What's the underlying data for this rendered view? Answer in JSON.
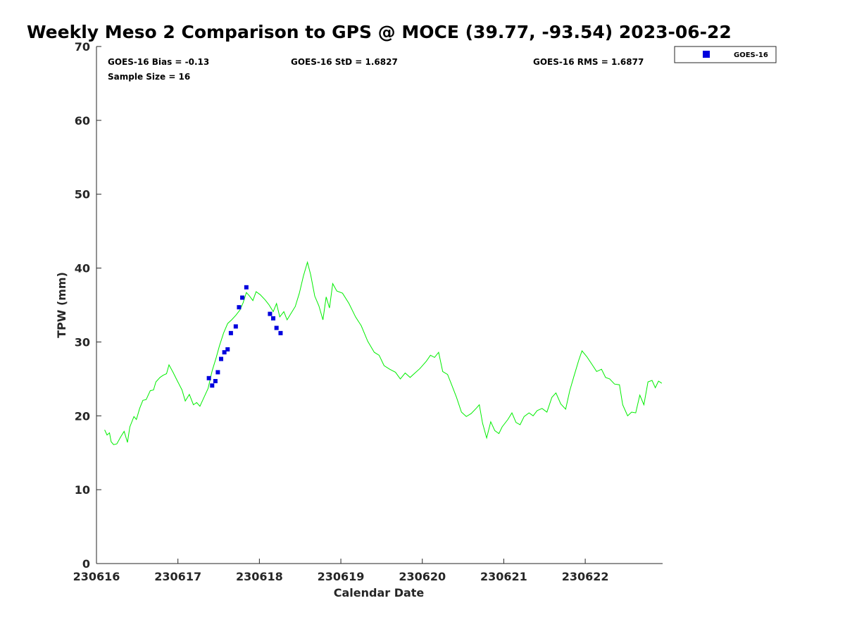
{
  "chart_data": {
    "type": "scatter",
    "title": "Weekly Meso 2 Comparison to GPS @ MOCE (39.77, -93.54) 2023-06-22",
    "xlabel": "Calendar Date",
    "ylabel": "TPW (mm)",
    "xlim": [
      230616.0,
      230622.95
    ],
    "ylim": [
      0,
      70
    ],
    "x_ticks": [
      230616,
      230617,
      230618,
      230619,
      230620,
      230621,
      230622
    ],
    "x_tick_labels": [
      "230616",
      "230617",
      "230618",
      "230619",
      "230620",
      "230621",
      "230622"
    ],
    "y_ticks": [
      0,
      10,
      20,
      30,
      40,
      50,
      60,
      70
    ],
    "y_tick_labels": [
      "0",
      "10",
      "20",
      "30",
      "40",
      "50",
      "60",
      "70"
    ],
    "grid": false,
    "legend_position": "top-right outside",
    "stats": {
      "bias": "GOES-16 Bias = -0.13",
      "std": "GOES-16 StD = 1.6827",
      "rms": "GOES-16 RMS = 1.6877",
      "sample": "Sample Size = 16"
    },
    "series": [
      {
        "name": "GOES-16",
        "kind": "scatter",
        "marker": "square",
        "color": "#0000dd",
        "points": [
          [
            230617.38,
            25.1
          ],
          [
            230617.42,
            24.1
          ],
          [
            230617.46,
            24.7
          ],
          [
            230617.49,
            25.9
          ],
          [
            230617.53,
            27.7
          ],
          [
            230617.57,
            28.6
          ],
          [
            230617.61,
            29.0
          ],
          [
            230617.65,
            31.2
          ],
          [
            230617.71,
            32.1
          ],
          [
            230617.75,
            34.7
          ],
          [
            230617.79,
            36.0
          ],
          [
            230617.84,
            37.4
          ],
          [
            230618.13,
            33.8
          ],
          [
            230618.17,
            33.2
          ],
          [
            230618.21,
            31.9
          ],
          [
            230618.26,
            31.2
          ]
        ]
      },
      {
        "kind": "line",
        "color": "#00ee00",
        "points": [
          [
            230616.1,
            18.1
          ],
          [
            230616.13,
            17.4
          ],
          [
            230616.16,
            17.7
          ],
          [
            230616.18,
            16.5
          ],
          [
            230616.21,
            16.1
          ],
          [
            230616.25,
            16.2
          ],
          [
            230616.3,
            17.2
          ],
          [
            230616.34,
            17.9
          ],
          [
            230616.38,
            16.4
          ],
          [
            230616.41,
            18.5
          ],
          [
            230616.46,
            19.9
          ],
          [
            230616.49,
            19.5
          ],
          [
            230616.53,
            21.0
          ],
          [
            230616.57,
            22.1
          ],
          [
            230616.61,
            22.2
          ],
          [
            230616.66,
            23.4
          ],
          [
            230616.7,
            23.5
          ],
          [
            230616.73,
            24.6
          ],
          [
            230616.78,
            25.2
          ],
          [
            230616.82,
            25.5
          ],
          [
            230616.86,
            25.7
          ],
          [
            230616.89,
            26.9
          ],
          [
            230616.94,
            25.9
          ],
          [
            230616.99,
            24.8
          ],
          [
            230617.05,
            23.5
          ],
          [
            230617.09,
            22.0
          ],
          [
            230617.14,
            22.9
          ],
          [
            230617.19,
            21.5
          ],
          [
            230617.23,
            21.8
          ],
          [
            230617.27,
            21.3
          ],
          [
            230617.32,
            22.5
          ],
          [
            230617.37,
            23.7
          ],
          [
            230617.42,
            26.1
          ],
          [
            230617.47,
            27.9
          ],
          [
            230617.51,
            29.5
          ],
          [
            230617.56,
            31.2
          ],
          [
            230617.61,
            32.5
          ],
          [
            230617.66,
            33.0
          ],
          [
            230617.71,
            33.6
          ],
          [
            230617.76,
            34.3
          ],
          [
            230617.8,
            35.3
          ],
          [
            230617.84,
            36.7
          ],
          [
            230617.88,
            36.2
          ],
          [
            230617.92,
            35.6
          ],
          [
            230617.96,
            36.8
          ],
          [
            230618.01,
            36.4
          ],
          [
            230618.07,
            35.7
          ],
          [
            230618.12,
            35.0
          ],
          [
            230618.17,
            34.1
          ],
          [
            230618.21,
            35.2
          ],
          [
            230618.25,
            33.4
          ],
          [
            230618.3,
            34.1
          ],
          [
            230618.34,
            33.0
          ],
          [
            230618.39,
            33.9
          ],
          [
            230618.44,
            34.8
          ],
          [
            230618.49,
            36.6
          ],
          [
            230618.54,
            38.9
          ],
          [
            230618.59,
            40.8
          ],
          [
            230618.63,
            39.1
          ],
          [
            230618.68,
            36.2
          ],
          [
            230618.73,
            34.9
          ],
          [
            230618.78,
            33.0
          ],
          [
            230618.82,
            36.1
          ],
          [
            230618.86,
            34.6
          ],
          [
            230618.9,
            37.9
          ],
          [
            230618.95,
            36.9
          ],
          [
            230619.02,
            36.6
          ],
          [
            230619.1,
            35.2
          ],
          [
            230619.18,
            33.4
          ],
          [
            230619.25,
            32.2
          ],
          [
            230619.33,
            30.1
          ],
          [
            230619.41,
            28.6
          ],
          [
            230619.47,
            28.2
          ],
          [
            230619.53,
            26.8
          ],
          [
            230619.6,
            26.3
          ],
          [
            230619.67,
            25.9
          ],
          [
            230619.73,
            25.0
          ],
          [
            230619.79,
            25.8
          ],
          [
            230619.85,
            25.2
          ],
          [
            230619.91,
            25.8
          ],
          [
            230619.97,
            26.4
          ],
          [
            230620.05,
            27.4
          ],
          [
            230620.1,
            28.2
          ],
          [
            230620.15,
            27.9
          ],
          [
            230620.2,
            28.6
          ],
          [
            230620.25,
            26.0
          ],
          [
            230620.31,
            25.6
          ],
          [
            230620.36,
            24.2
          ],
          [
            230620.42,
            22.5
          ],
          [
            230620.48,
            20.5
          ],
          [
            230620.54,
            19.9
          ],
          [
            230620.6,
            20.3
          ],
          [
            230620.66,
            21.0
          ],
          [
            230620.7,
            21.5
          ],
          [
            230620.74,
            19.0
          ],
          [
            230620.79,
            17.0
          ],
          [
            230620.84,
            19.2
          ],
          [
            230620.89,
            18.0
          ],
          [
            230620.94,
            17.6
          ],
          [
            230620.98,
            18.5
          ],
          [
            230621.05,
            19.5
          ],
          [
            230621.1,
            20.4
          ],
          [
            230621.15,
            19.1
          ],
          [
            230621.2,
            18.8
          ],
          [
            230621.25,
            19.9
          ],
          [
            230621.31,
            20.4
          ],
          [
            230621.36,
            20.0
          ],
          [
            230621.41,
            20.7
          ],
          [
            230621.47,
            21.0
          ],
          [
            230621.53,
            20.5
          ],
          [
            230621.59,
            22.5
          ],
          [
            230621.64,
            23.1
          ],
          [
            230621.7,
            21.6
          ],
          [
            230621.76,
            20.9
          ],
          [
            230621.81,
            23.4
          ],
          [
            230621.86,
            25.3
          ],
          [
            230621.92,
            27.5
          ],
          [
            230621.96,
            28.8
          ],
          [
            230622.02,
            28.0
          ],
          [
            230622.08,
            27.0
          ],
          [
            230622.14,
            26.0
          ],
          [
            230622.2,
            26.3
          ],
          [
            230622.25,
            25.2
          ],
          [
            230622.3,
            25.0
          ],
          [
            230622.36,
            24.3
          ],
          [
            230622.42,
            24.2
          ],
          [
            230622.46,
            21.5
          ],
          [
            230622.52,
            20.0
          ],
          [
            230622.57,
            20.5
          ],
          [
            230622.62,
            20.4
          ],
          [
            230622.67,
            22.8
          ],
          [
            230622.72,
            21.5
          ],
          [
            230622.77,
            24.6
          ],
          [
            230622.82,
            24.8
          ],
          [
            230622.86,
            23.8
          ],
          [
            230622.9,
            24.7
          ],
          [
            230622.94,
            24.4
          ]
        ]
      }
    ]
  }
}
